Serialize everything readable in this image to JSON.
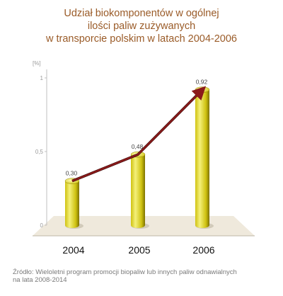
{
  "title_lines": [
    "Udział biokomponentów w ogólnej",
    "ilości paliw zużywanych",
    "w transporcie polskim w latach 2004-2006"
  ],
  "source_lines": [
    "Źródło: Wieloletni program promocji biopaliw lub innych paliw odnawialnych",
    "na lata 2008-2014"
  ],
  "chart_data": {
    "type": "bar",
    "title": "Udział biokomponentów w ogólnej ilości paliw zużywanych w transporcie polskim w latach 2004-2006",
    "ylabel": "[%]",
    "xlabel": "",
    "categories": [
      "2004",
      "2005",
      "2006"
    ],
    "values": [
      0.3,
      0.48,
      0.92
    ],
    "value_labels": [
      "0,30",
      "0,48",
      "0,92"
    ],
    "yticks": [
      0,
      0.5,
      1
    ],
    "ytick_labels": [
      "0",
      "0,5",
      "1"
    ],
    "ylim": [
      0,
      1.05
    ],
    "trend_arrow": true,
    "grid": false,
    "colors": {
      "bar_light": "#f4f07a",
      "bar_mid": "#cfc210",
      "bar_dark": "#7d7200",
      "arrow": "#8b1a1a",
      "floor": "#efe9dc",
      "title": "#9a5b28"
    }
  }
}
